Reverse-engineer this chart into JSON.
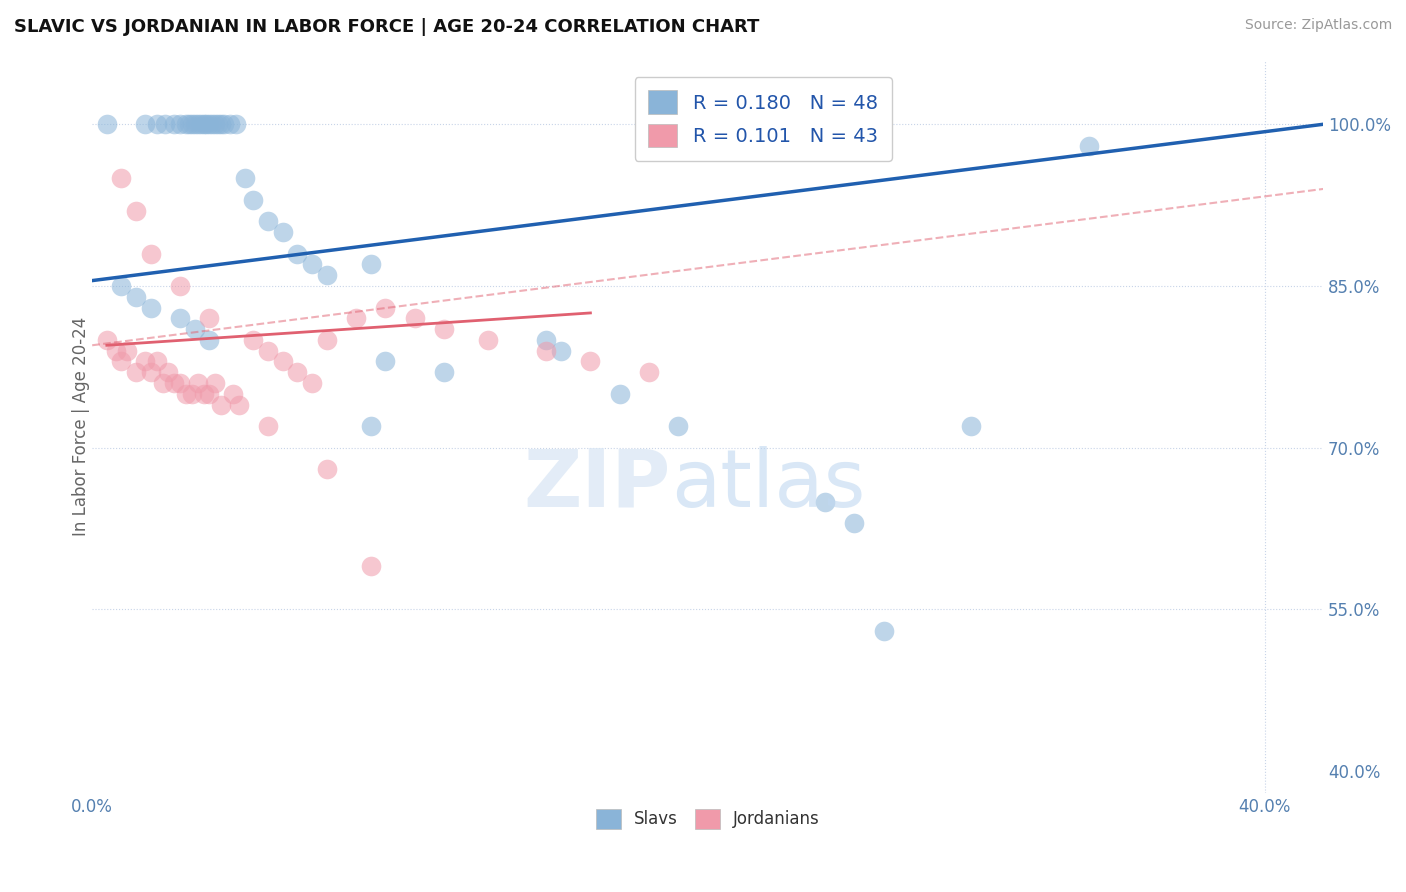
{
  "title": "SLAVIC VS JORDANIAN IN LABOR FORCE | AGE 20-24 CORRELATION CHART",
  "source": "Source: ZipAtlas.com",
  "ylabel": "In Labor Force | Age 20-24",
  "xlim": [
    0.0,
    0.42
  ],
  "ylim": [
    0.38,
    1.06
  ],
  "background_color": "#ffffff",
  "grid_color": "#c8d4e8",
  "slavs_color": "#8ab4d8",
  "jordanians_color": "#f09aaa",
  "trend_slavs_color": "#2060b0",
  "trend_jordan_color": "#e06070",
  "R_slavs": 0.18,
  "R_jordan": 0.101,
  "N_slavs": 48,
  "N_jordan": 43,
  "legend_labels": [
    "Slavs",
    "Jordanians"
  ],
  "slavs_x": [
    0.005,
    0.018,
    0.022,
    0.025,
    0.028,
    0.03,
    0.032,
    0.033,
    0.034,
    0.035,
    0.036,
    0.037,
    0.038,
    0.039,
    0.04,
    0.041,
    0.042,
    0.043,
    0.044,
    0.045,
    0.047,
    0.049,
    0.052,
    0.055,
    0.06,
    0.065,
    0.07,
    0.075,
    0.08,
    0.095,
    0.01,
    0.015,
    0.02,
    0.03,
    0.035,
    0.04,
    0.155,
    0.16,
    0.1,
    0.12,
    0.18,
    0.34,
    0.095,
    0.2,
    0.3,
    0.25,
    0.26,
    0.27
  ],
  "slavs_y": [
    1.0,
    1.0,
    1.0,
    1.0,
    1.0,
    1.0,
    1.0,
    1.0,
    1.0,
    1.0,
    1.0,
    1.0,
    1.0,
    1.0,
    1.0,
    1.0,
    1.0,
    1.0,
    1.0,
    1.0,
    1.0,
    1.0,
    0.95,
    0.93,
    0.91,
    0.9,
    0.88,
    0.87,
    0.86,
    0.87,
    0.85,
    0.84,
    0.83,
    0.82,
    0.81,
    0.8,
    0.8,
    0.79,
    0.78,
    0.77,
    0.75,
    0.98,
    0.72,
    0.72,
    0.72,
    0.65,
    0.63,
    0.53
  ],
  "jordan_x": [
    0.005,
    0.008,
    0.01,
    0.012,
    0.015,
    0.018,
    0.02,
    0.022,
    0.024,
    0.026,
    0.028,
    0.03,
    0.032,
    0.034,
    0.036,
    0.038,
    0.04,
    0.042,
    0.044,
    0.048,
    0.05,
    0.055,
    0.06,
    0.065,
    0.07,
    0.075,
    0.08,
    0.09,
    0.1,
    0.11,
    0.12,
    0.135,
    0.155,
    0.17,
    0.19,
    0.01,
    0.015,
    0.02,
    0.03,
    0.04,
    0.06,
    0.08,
    0.095
  ],
  "jordan_y": [
    0.8,
    0.79,
    0.78,
    0.79,
    0.77,
    0.78,
    0.77,
    0.78,
    0.76,
    0.77,
    0.76,
    0.76,
    0.75,
    0.75,
    0.76,
    0.75,
    0.75,
    0.76,
    0.74,
    0.75,
    0.74,
    0.8,
    0.79,
    0.78,
    0.77,
    0.76,
    0.8,
    0.82,
    0.83,
    0.82,
    0.81,
    0.8,
    0.79,
    0.78,
    0.77,
    0.95,
    0.92,
    0.88,
    0.85,
    0.82,
    0.72,
    0.68,
    0.59
  ]
}
